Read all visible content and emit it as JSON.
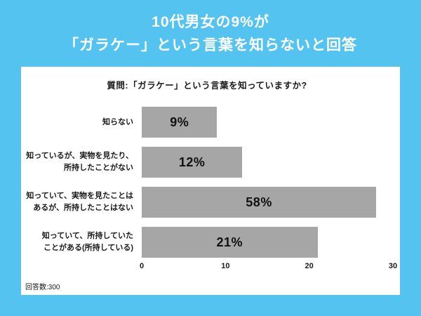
{
  "page": {
    "background_color": "#54c3f0",
    "title_line1": "10代男女の9%が",
    "title_line2": "「ガラケー」という言葉を知らないと回答",
    "question": "質問:「ガラケー」という言葉を知っていますか?",
    "footer": "回答数:300"
  },
  "chart_data": {
    "type": "bar",
    "orientation": "horizontal",
    "title": "10代男女の9%が「ガラケー」という言葉を知らないと回答",
    "subtitle": "質問:「ガラケー」という言葉を知っていますか?",
    "categories": [
      "知らない",
      "知っているが、実物を見たり、\n所持したことがない",
      "知っていて、実物を見たことは\nあるが、所持したことはない",
      "知っていて、所持していた\nことがある(所持している)"
    ],
    "values": [
      9,
      12,
      58,
      21
    ],
    "value_labels": [
      "9%",
      "12%",
      "58%",
      "21%"
    ],
    "x_ticks": [
      "0",
      "10",
      "20",
      "30"
    ],
    "xlim": [
      0,
      30
    ],
    "visual_bar_cap": 28,
    "bar_color": "#a6a6a6",
    "grid": false,
    "legend": false,
    "sample_size_note": "回答数:300"
  }
}
